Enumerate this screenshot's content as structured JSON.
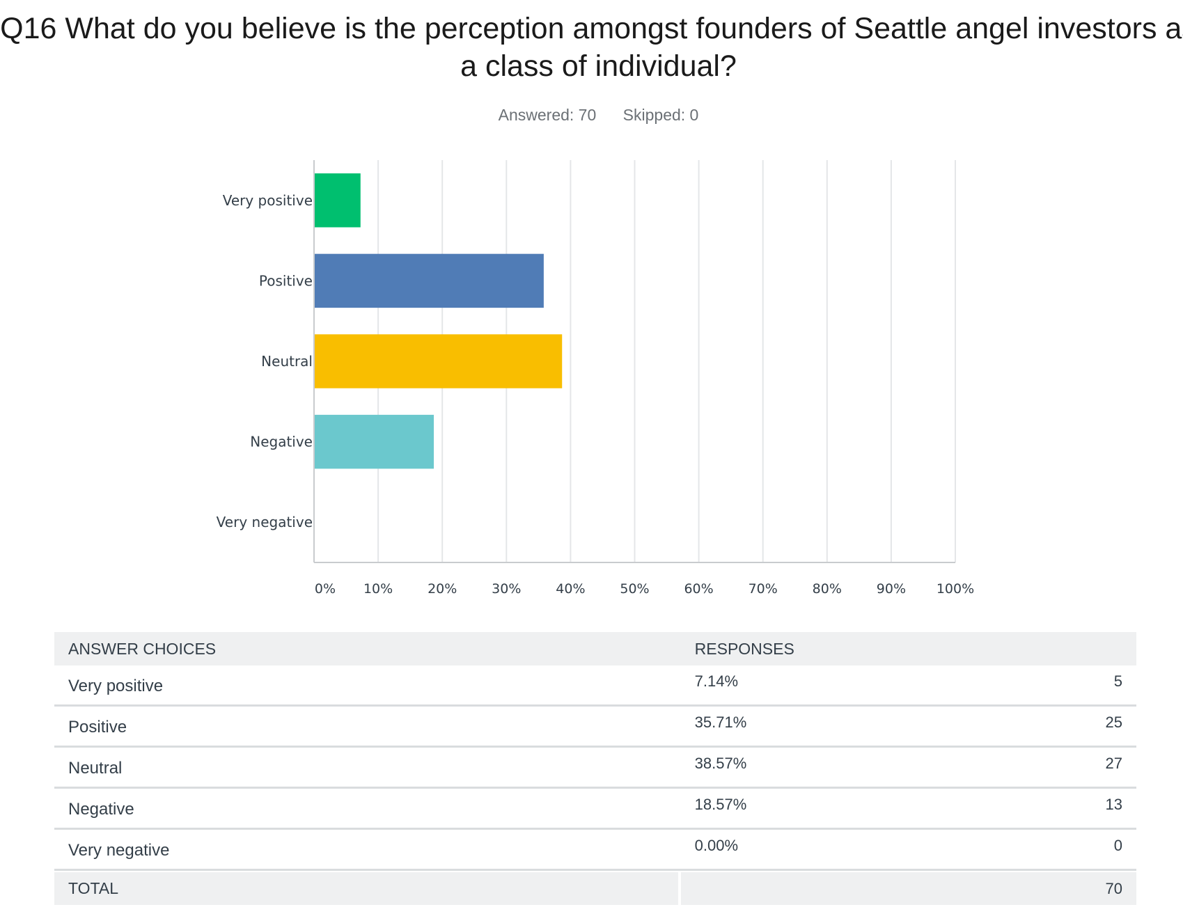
{
  "title": "Q16 What do you believe is the perception amongst founders of Seattle angel investors as a class of individual?",
  "summary": {
    "answered": "Answered: 70",
    "skipped": "Skipped: 0"
  },
  "chart_data": {
    "type": "bar",
    "orientation": "horizontal",
    "categories": [
      "Very positive",
      "Positive",
      "Neutral",
      "Negative",
      "Very negative"
    ],
    "values": [
      7.14,
      35.71,
      38.57,
      18.57,
      0
    ],
    "colors": [
      "#00bf6f",
      "#507cb6",
      "#f9be00",
      "#6bc8cd",
      "#ff8b4f"
    ],
    "xlim": [
      0,
      100
    ],
    "xticks": [
      "0%",
      "10%",
      "20%",
      "30%",
      "40%",
      "50%",
      "60%",
      "70%",
      "80%",
      "90%",
      "100%"
    ],
    "grid": true
  },
  "table": {
    "headers": [
      "ANSWER CHOICES",
      "RESPONSES"
    ],
    "rows": [
      {
        "choice": "Very positive",
        "percent": "7.14%",
        "count": "5"
      },
      {
        "choice": "Positive",
        "percent": "35.71%",
        "count": "25"
      },
      {
        "choice": "Neutral",
        "percent": "38.57%",
        "count": "27"
      },
      {
        "choice": "Negative",
        "percent": "18.57%",
        "count": "13"
      },
      {
        "choice": "Very negative",
        "percent": "0.00%",
        "count": "0"
      }
    ],
    "total_label": "TOTAL",
    "total_value": "70"
  }
}
